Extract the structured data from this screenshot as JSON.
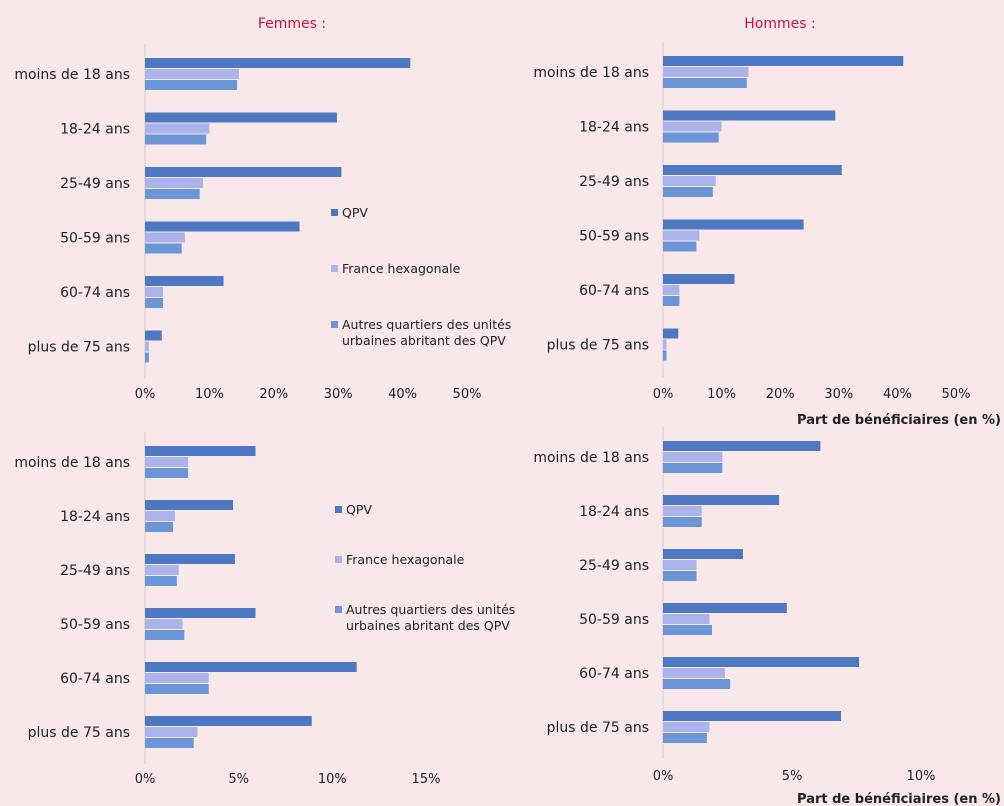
{
  "headers": {
    "women": "Femmes :",
    "men": "Hommes :"
  },
  "x_axis_title": "Part de bénéficiaires (en %)",
  "colors": {
    "header": "#c8104a",
    "QPV": "#4e79c2",
    "France hexagonale": "#aab4ea",
    "Autres quartiers des unités urbaines abritant des QPV": "#6b95d6"
  },
  "legend": {
    "entries": [
      {
        "label": "QPV",
        "color_key": "QPV"
      },
      {
        "label": "France hexagonale",
        "color_key": "France hexagonale"
      },
      {
        "label": "Autres quartiers des unités urbaines abritant des QPV",
        "lines": [
          "Autres quartiers des unités",
          "urbaines abritant des QPV"
        ],
        "color_key": "Autres quartiers des unités urbaines abritant des QPV"
      }
    ]
  },
  "chart_data": [
    {
      "type": "bar",
      "orientation": "horizontal",
      "panel": "top-left",
      "header": "Femmes :",
      "categories": [
        "moins de 18 ans",
        "18-24 ans",
        "25-49 ans",
        "50-59 ans",
        "60-74 ans",
        "plus de 75 ans"
      ],
      "series": [
        {
          "name": "QPV",
          "values": [
            41.2,
            29.8,
            30.5,
            24.0,
            12.2,
            2.6
          ]
        },
        {
          "name": "France hexagonale",
          "values": [
            14.6,
            10.0,
            9.0,
            6.2,
            2.8,
            0.6
          ]
        },
        {
          "name": "Autres quartiers des unités urbaines abritant des QPV",
          "values": [
            14.3,
            9.5,
            8.5,
            5.7,
            2.8,
            0.6
          ]
        }
      ],
      "xlim": [
        0,
        50
      ],
      "xticks": [
        "0%",
        "10%",
        "20%",
        "30%",
        "40%",
        "50%"
      ],
      "legend": "right"
    },
    {
      "type": "bar",
      "orientation": "horizontal",
      "panel": "top-right",
      "header": "Hommes :",
      "categories": [
        "moins de 18 ans",
        "18-24 ans",
        "25-49 ans",
        "50-59 ans",
        "60-74 ans",
        "plus de 75 ans"
      ],
      "series": [
        {
          "name": "QPV",
          "values": [
            41.0,
            29.4,
            30.5,
            24.0,
            12.2,
            2.6
          ]
        },
        {
          "name": "France hexagonale",
          "values": [
            14.6,
            10.0,
            9.0,
            6.2,
            2.8,
            0.6
          ]
        },
        {
          "name": "Autres quartiers des unités urbaines abritant des QPV",
          "values": [
            14.3,
            9.5,
            8.5,
            5.7,
            2.8,
            0.6
          ]
        }
      ],
      "xlim": [
        0,
        50
      ],
      "xticks": [
        "0%",
        "10%",
        "20%",
        "30%",
        "40%",
        "50%"
      ],
      "xlabel": "Part de bénéficiaires (en %)"
    },
    {
      "type": "bar",
      "orientation": "horizontal",
      "panel": "bottom-left",
      "categories": [
        "moins de 18 ans",
        "18-24 ans",
        "25-49 ans",
        "50-59 ans",
        "60-74 ans",
        "plus de 75 ans"
      ],
      "series": [
        {
          "name": "QPV",
          "values": [
            5.9,
            4.7,
            4.8,
            5.9,
            11.3,
            8.9
          ]
        },
        {
          "name": "France hexagonale",
          "values": [
            2.3,
            1.6,
            1.8,
            2.0,
            3.4,
            2.8
          ]
        },
        {
          "name": "Autres quartiers des unités urbaines abritant des QPV",
          "values": [
            2.3,
            1.5,
            1.7,
            2.1,
            3.4,
            2.6
          ]
        }
      ],
      "xlim": [
        0,
        15
      ],
      "xticks": [
        "0%",
        "5%",
        "10%",
        "15%"
      ],
      "legend": "right"
    },
    {
      "type": "bar",
      "orientation": "horizontal",
      "panel": "bottom-right",
      "categories": [
        "moins de 18 ans",
        "18-24 ans",
        "25-49 ans",
        "50-59 ans",
        "60-74 ans",
        "plus de 75 ans"
      ],
      "series": [
        {
          "name": "QPV",
          "values": [
            6.1,
            4.5,
            3.1,
            4.8,
            7.6,
            6.9
          ]
        },
        {
          "name": "France hexagonale",
          "values": [
            2.3,
            1.5,
            1.3,
            1.8,
            2.4,
            1.8
          ]
        },
        {
          "name": "Autres quartiers des unités urbaines abritant des QPV",
          "values": [
            2.3,
            1.5,
            1.3,
            1.9,
            2.6,
            1.7
          ]
        }
      ],
      "xlim": [
        0,
        10
      ],
      "xticks": [
        "0%",
        "5%",
        "10%"
      ],
      "xlabel": "Part de bénéficiaires (en %)"
    }
  ]
}
